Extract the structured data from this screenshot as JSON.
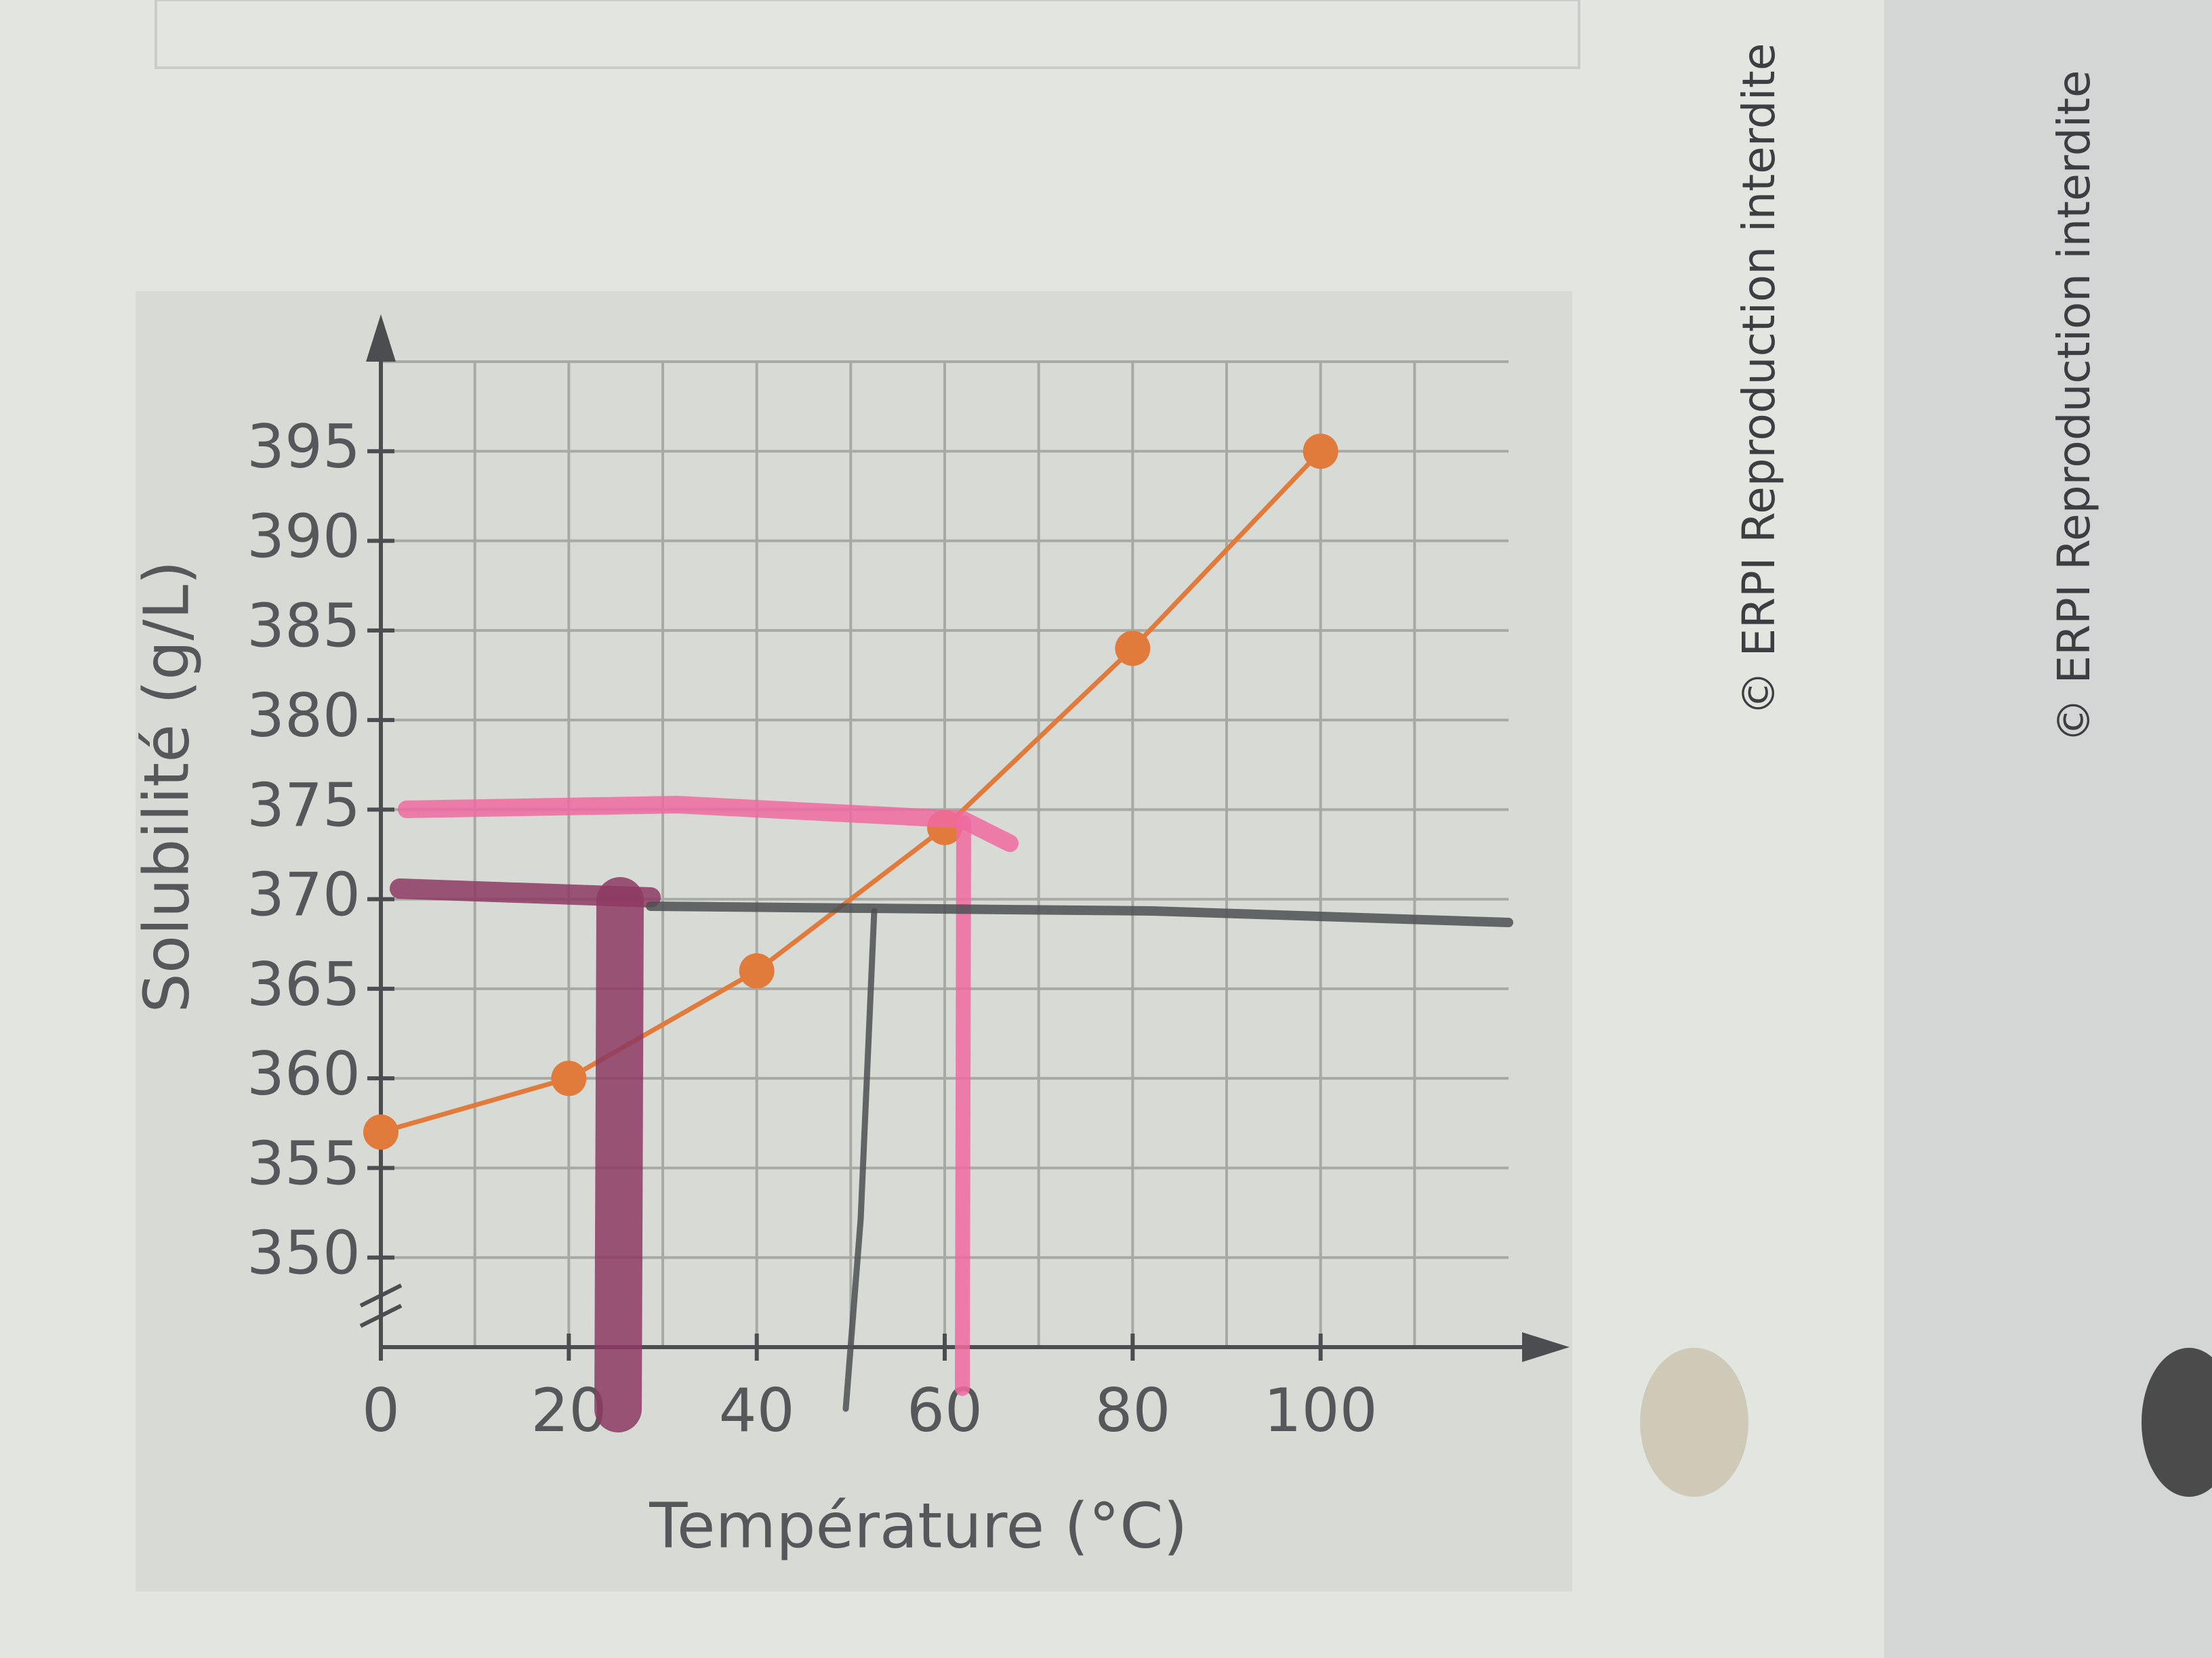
{
  "chart_data": {
    "type": "line",
    "x_label": "Température (°C)",
    "y_label": "Solubilité (g/L)",
    "x": [
      0,
      20,
      40,
      60,
      80,
      100
    ],
    "series": [
      {
        "color": "#e07b3c",
        "values": [
          357,
          360,
          366,
          374,
          384,
          395
        ]
      }
    ],
    "xlim": [
      0,
      120
    ],
    "xticks": [
      0,
      20,
      40,
      60,
      80,
      100
    ],
    "ylim": [
      345,
      400
    ],
    "yticks": [
      350,
      355,
      360,
      365,
      370,
      375,
      380,
      385,
      390,
      395
    ],
    "grid": true,
    "annotations": [
      "© ERPI Reproduction interdite",
      "© ERPI Reproduction interdite"
    ]
  }
}
